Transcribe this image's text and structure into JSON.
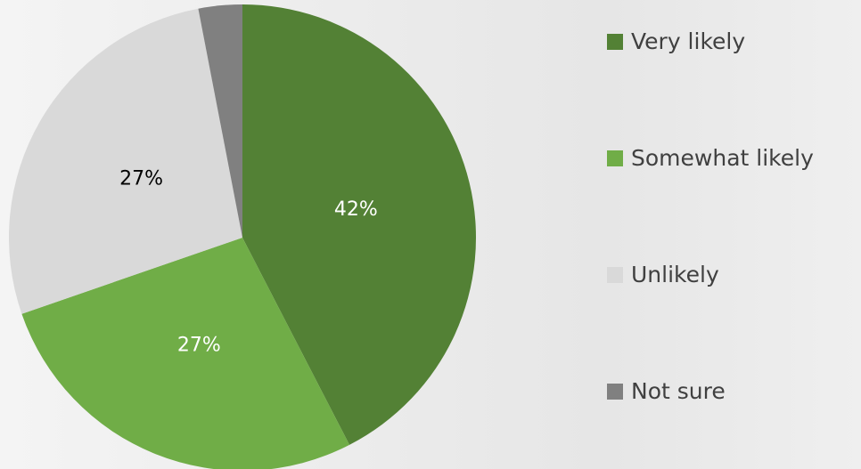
{
  "chart_data": {
    "type": "pie",
    "categories": [
      "Very likely",
      "Somewhat likely",
      "Unlikely",
      "Not sure"
    ],
    "values": [
      42,
      27,
      27,
      3
    ],
    "value_labels": [
      "42%",
      "27%",
      "27%",
      null
    ],
    "colors": [
      "#538135",
      "#70ad47",
      "#d9d9d9",
      "#808080"
    ],
    "legend": "right"
  }
}
